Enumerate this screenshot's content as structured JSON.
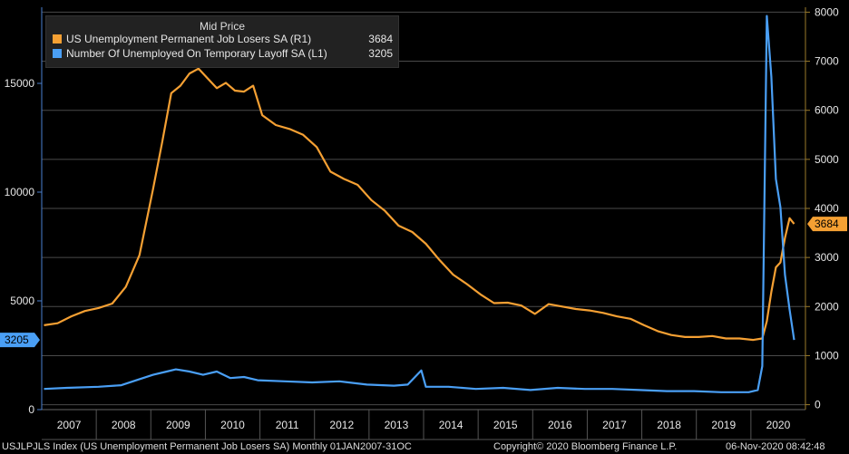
{
  "chart_data": {
    "type": "line",
    "legend": {
      "title": "Mid Price",
      "entries": [
        {
          "name": "US Unemployment Permanent Job Losers SA  (R1)",
          "value": "3684",
          "color": "#f5a033"
        },
        {
          "name": "Number Of Unemployed On Temporary Layoff SA  (L1)",
          "value": "3205",
          "color": "#4a9ff5"
        }
      ]
    },
    "x_ticks": [
      "2007",
      "2008",
      "2009",
      "2010",
      "2011",
      "2012",
      "2013",
      "2014",
      "2015",
      "2016",
      "2017",
      "2018",
      "2019",
      "2020"
    ],
    "xlim": [
      "2007-01",
      "2020-12"
    ],
    "left_axis": {
      "ticks": [
        "0",
        "5000",
        "10000",
        "15000"
      ],
      "ylim": [
        0,
        18500
      ],
      "last_value_label": "3205"
    },
    "right_axis": {
      "ticks": [
        "0",
        "1000",
        "2000",
        "3000",
        "4000",
        "5000",
        "6000",
        "7000",
        "8000"
      ],
      "ylim": [
        -100,
        8100
      ],
      "last_value_label": "3684"
    },
    "grid": true,
    "series": [
      {
        "name": "US Unemployment Permanent Job Losers SA  (R1)",
        "axis": "right",
        "color": "#f5a033",
        "points": [
          [
            "2007-01",
            1620
          ],
          [
            "2007-04",
            1660
          ],
          [
            "2007-07",
            1800
          ],
          [
            "2007-10",
            1910
          ],
          [
            "2008-01",
            1970
          ],
          [
            "2008-04",
            2060
          ],
          [
            "2008-07",
            2400
          ],
          [
            "2008-10",
            3050
          ],
          [
            "2009-01",
            4400
          ],
          [
            "2009-03",
            5350
          ],
          [
            "2009-05",
            6350
          ],
          [
            "2009-07",
            6500
          ],
          [
            "2009-09",
            6750
          ],
          [
            "2009-11",
            6850
          ],
          [
            "2010-01",
            6650
          ],
          [
            "2010-03",
            6450
          ],
          [
            "2010-05",
            6560
          ],
          [
            "2010-07",
            6400
          ],
          [
            "2010-09",
            6380
          ],
          [
            "2010-11",
            6500
          ],
          [
            "2011-01",
            5900
          ],
          [
            "2011-04",
            5700
          ],
          [
            "2011-07",
            5620
          ],
          [
            "2011-10",
            5500
          ],
          [
            "2012-01",
            5250
          ],
          [
            "2012-04",
            4750
          ],
          [
            "2012-07",
            4600
          ],
          [
            "2012-10",
            4480
          ],
          [
            "2013-01",
            4170
          ],
          [
            "2013-04",
            3950
          ],
          [
            "2013-07",
            3650
          ],
          [
            "2013-10",
            3520
          ],
          [
            "2014-01",
            3280
          ],
          [
            "2014-04",
            2950
          ],
          [
            "2014-07",
            2650
          ],
          [
            "2014-10",
            2460
          ],
          [
            "2015-01",
            2250
          ],
          [
            "2015-04",
            2070
          ],
          [
            "2015-07",
            2080
          ],
          [
            "2015-10",
            2020
          ],
          [
            "2016-01",
            1850
          ],
          [
            "2016-04",
            2050
          ],
          [
            "2016-07",
            2000
          ],
          [
            "2016-10",
            1950
          ],
          [
            "2017-01",
            1920
          ],
          [
            "2017-04",
            1870
          ],
          [
            "2017-07",
            1800
          ],
          [
            "2017-10",
            1750
          ],
          [
            "2018-01",
            1620
          ],
          [
            "2018-04",
            1500
          ],
          [
            "2018-07",
            1420
          ],
          [
            "2018-10",
            1380
          ],
          [
            "2019-01",
            1380
          ],
          [
            "2019-04",
            1400
          ],
          [
            "2019-07",
            1350
          ],
          [
            "2019-10",
            1350
          ],
          [
            "2020-01",
            1320
          ],
          [
            "2020-03",
            1350
          ],
          [
            "2020-04",
            1700
          ],
          [
            "2020-05",
            2300
          ],
          [
            "2020-06",
            2800
          ],
          [
            "2020-07",
            2900
          ],
          [
            "2020-08",
            3400
          ],
          [
            "2020-09",
            3800
          ],
          [
            "2020-10",
            3684
          ]
        ]
      },
      {
        "name": "Number Of Unemployed On Temporary Layoff SA  (L1)",
        "axis": "left",
        "color": "#4a9ff5",
        "points": [
          [
            "2007-01",
            950
          ],
          [
            "2007-06",
            1000
          ],
          [
            "2008-01",
            1050
          ],
          [
            "2008-06",
            1120
          ],
          [
            "2008-10",
            1400
          ],
          [
            "2009-01",
            1600
          ],
          [
            "2009-04",
            1750
          ],
          [
            "2009-06",
            1850
          ],
          [
            "2009-09",
            1750
          ],
          [
            "2009-12",
            1600
          ],
          [
            "2010-03",
            1750
          ],
          [
            "2010-06",
            1450
          ],
          [
            "2010-09",
            1500
          ],
          [
            "2010-12",
            1350
          ],
          [
            "2011-06",
            1300
          ],
          [
            "2011-12",
            1250
          ],
          [
            "2012-06",
            1300
          ],
          [
            "2012-12",
            1150
          ],
          [
            "2013-06",
            1100
          ],
          [
            "2013-09",
            1150
          ],
          [
            "2013-12",
            1800
          ],
          [
            "2014-01",
            1050
          ],
          [
            "2014-06",
            1050
          ],
          [
            "2014-12",
            950
          ],
          [
            "2015-06",
            1000
          ],
          [
            "2015-12",
            900
          ],
          [
            "2016-06",
            1000
          ],
          [
            "2016-12",
            950
          ],
          [
            "2017-06",
            950
          ],
          [
            "2017-12",
            900
          ],
          [
            "2018-06",
            850
          ],
          [
            "2018-12",
            850
          ],
          [
            "2019-06",
            800
          ],
          [
            "2019-12",
            800
          ],
          [
            "2020-02",
            900
          ],
          [
            "2020-03",
            2000
          ],
          [
            "2020-04",
            18100
          ],
          [
            "2020-05",
            15300
          ],
          [
            "2020-06",
            10600
          ],
          [
            "2020-07",
            9300
          ],
          [
            "2020-08",
            6200
          ],
          [
            "2020-09",
            4600
          ],
          [
            "2020-10",
            3205
          ]
        ]
      }
    ]
  },
  "footer": {
    "ticker": "USJLPJLS Index (US Unemployment Permanent Job Losers SA)  Monthly 01JAN2007-31OC",
    "copyright": "Copyright© 2020 Bloomberg Finance L.P.",
    "timestamp": "06-Nov-2020 08:42:48"
  }
}
